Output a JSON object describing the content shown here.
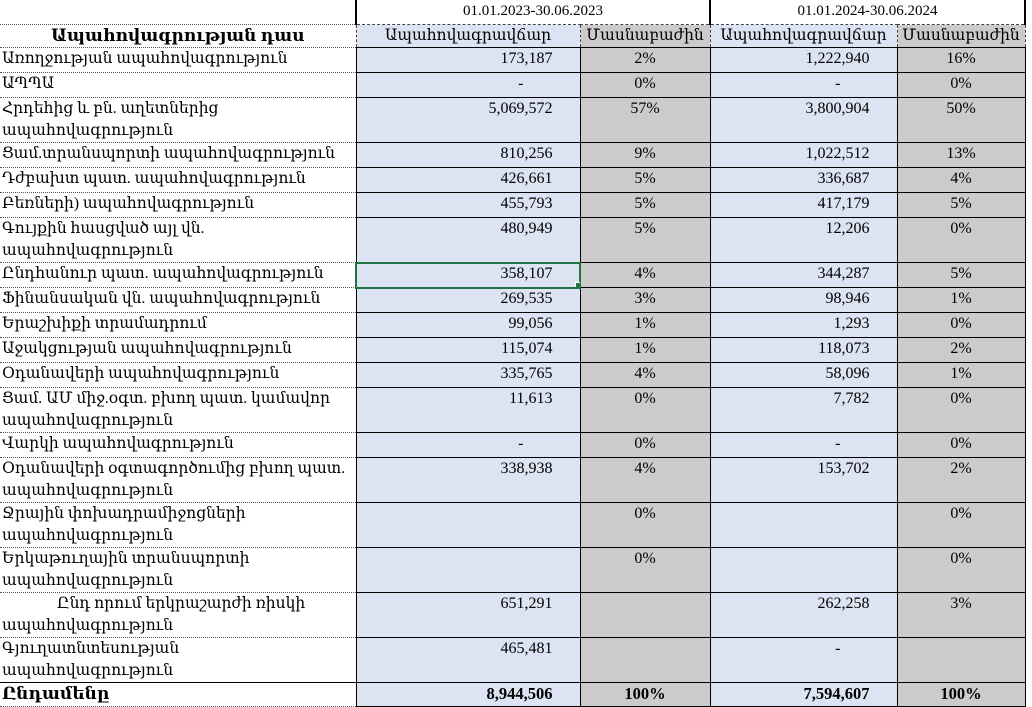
{
  "header": {
    "row_label": "Ապահովագրության դաս",
    "period1": "01.01.2023-30.06.2023",
    "period2": "01.01.2024-30.06.2024",
    "col_premium": "Ապահովագրավճար",
    "col_share": "Մասնաբաժին"
  },
  "rows": [
    {
      "label": "Առողջության ապահովագրություն",
      "p2023": "173,187",
      "s2023": "2%",
      "p2024": "1,222,940",
      "s2024": "16%"
    },
    {
      "label": "ԱՊՊԱ",
      "p2023": "-",
      "s2023": "0%",
      "p2024": "-",
      "s2024": "0%"
    },
    {
      "label": "Հրդեհից և բն. աղետներից\nապահովագրություն",
      "p2023": "5,069,572",
      "s2023": "57%",
      "p2024": "3,800,904",
      "s2024": "50%"
    },
    {
      "label": "Ցամ.տրանսպորտի ապահովագրություն",
      "p2023": "810,256",
      "s2023": "9%",
      "p2024": "1,022,512",
      "s2024": "13%"
    },
    {
      "label": "Դժբախտ պատ. ապահովագրություն",
      "p2023": "426,661",
      "s2023": "5%",
      "p2024": "336,687",
      "s2024": "4%"
    },
    {
      "label": "Բեռների) ապահովագրություն",
      "p2023": "455,793",
      "s2023": "5%",
      "p2024": "417,179",
      "s2024": "5%"
    },
    {
      "label": "Գույքին հասցված այլ վն. ապահովագրություն",
      "p2023": "480,949",
      "s2023": "5%",
      "p2024": "12,206",
      "s2024": "0%"
    },
    {
      "label": "Ընդհանուր պատ. ապահովագրություն",
      "p2023": "358,107",
      "s2023": "4%",
      "p2024": "344,287",
      "s2024": "5%",
      "selected": true
    },
    {
      "label": "Ֆինանսական վն. ապահովագրություն",
      "p2023": "269,535",
      "s2023": "3%",
      "p2024": "98,946",
      "s2024": "1%"
    },
    {
      "label": "Երաշխիքի տրամադրում",
      "p2023": "99,056",
      "s2023": "1%",
      "p2024": "1,293",
      "s2024": "0%"
    },
    {
      "label": "Աջակցության ապահովագրություն",
      "p2023": "115,074",
      "s2023": "1%",
      "p2024": "118,073",
      "s2024": "2%"
    },
    {
      "label": "Օդանավերի ապահովագրություն",
      "p2023": "335,765",
      "s2023": "4%",
      "p2024": "58,096",
      "s2024": "1%"
    },
    {
      "label": "Ցամ. ԱՄ միջ.օգտ. բխող պատ. կամավոր\nապահովագրություն",
      "p2023": "11,613",
      "s2023": "0%",
      "p2024": "7,782",
      "s2024": "0%"
    },
    {
      "label": "Վարկի ապահովագրություն",
      "p2023": "-",
      "s2023": "0%",
      "p2024": "-",
      "s2024": "0%"
    },
    {
      "label": "Օդանավերի օգտագործումից բխող պատ.\nապահովագրություն",
      "p2023": "338,938",
      "s2023": "4%",
      "p2024": "153,702",
      "s2024": "2%"
    },
    {
      "label": "Ջրային փոխադրամիջոցների\nապահովագրություն",
      "p2023": "",
      "s2023": "0%",
      "p2024": "",
      "s2024": "0%"
    },
    {
      "label": "Երկաթուղային տրանսպորտի\nապահովագրություն",
      "p2023": "",
      "s2023": "0%",
      "p2024": "",
      "s2024": "0%"
    },
    {
      "label": "Ընդ որում  երկրաշարժի ռիսկի\nապահովագրություն",
      "p2023": "651,291",
      "s2023": "",
      "p2024": "262,258",
      "s2024": "3%",
      "indent": true
    },
    {
      "label": "Գյուղատնտեսության ապահովագրություն",
      "p2023": "465,481",
      "s2023": "",
      "p2024": "-",
      "s2024": ""
    }
  ],
  "total": {
    "label": "Ընդամենը",
    "p2023": "8,944,506",
    "s2023": "100%",
    "p2024": "7,594,607",
    "s2024": "100%"
  },
  "colors": {
    "premium_bg": "#dce3f2",
    "share_bg": "#cccbcb",
    "selection_green": "#217346"
  }
}
